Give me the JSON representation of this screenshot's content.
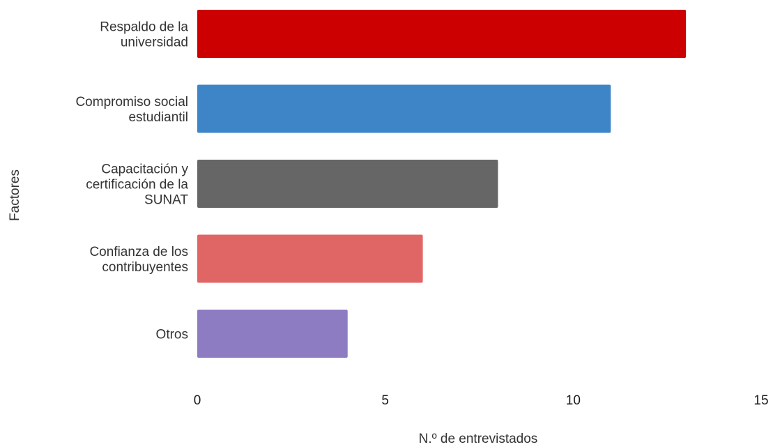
{
  "chart_data": {
    "type": "bar",
    "orientation": "horizontal",
    "categories": [
      [
        "Respaldo de la",
        "universidad"
      ],
      [
        "Compromiso social",
        "estudiantil"
      ],
      [
        "Capacitación y",
        "certificación de la",
        "SUNAT"
      ],
      [
        "Confianza de los",
        "contribuyentes"
      ],
      [
        "Otros"
      ]
    ],
    "values": [
      13,
      11,
      8,
      6,
      4
    ],
    "colors": [
      "#cc0000",
      "#3d85c6",
      "#666666",
      "#e06666",
      "#8e7cc3"
    ],
    "xlabel": "N.º de entrevistados",
    "ylabel": "Factores",
    "xlim": [
      0,
      15
    ],
    "xticks": [
      "0",
      "5",
      "10",
      "15"
    ],
    "grid": false,
    "legend": "none"
  }
}
